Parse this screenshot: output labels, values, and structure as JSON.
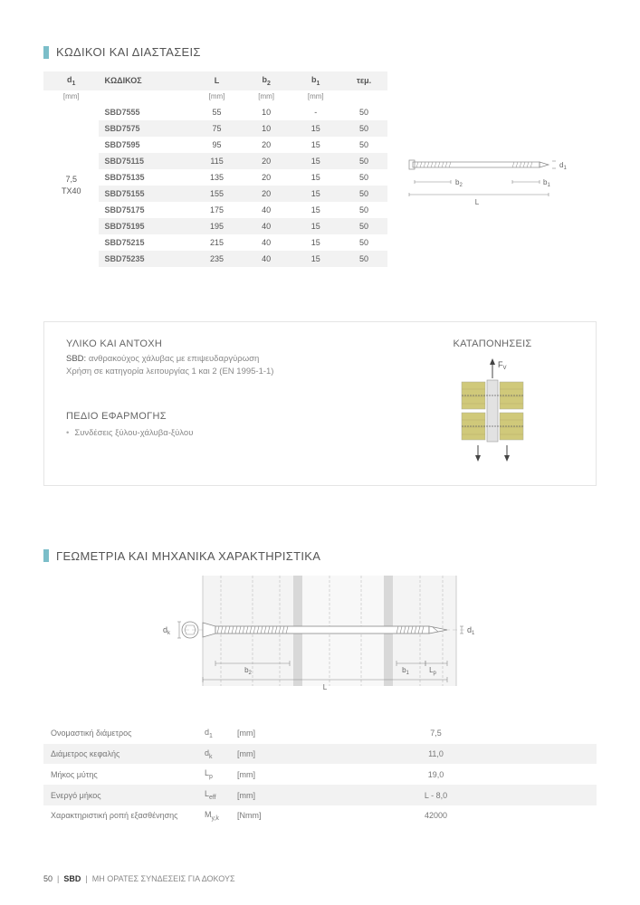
{
  "section1": {
    "title": "ΚΩΔΙΚΟΙ ΚΑΙ ΔΙΑΣΤΑΣΕΙΣ",
    "headers": {
      "d1": "d",
      "d1sub": "1",
      "code": "ΚΩΔΙΚΟΣ",
      "L": "L",
      "b2": "b",
      "b2sub": "2",
      "b1": "b",
      "b1sub": "1",
      "pcs": "τεμ."
    },
    "unit": "[mm]",
    "rowhead_line1": "7,5",
    "rowhead_line2": "TX40",
    "rows": [
      {
        "code": "SBD7555",
        "L": "55",
        "b2": "10",
        "b1": "-",
        "pcs": "50"
      },
      {
        "code": "SBD7575",
        "L": "75",
        "b2": "10",
        "b1": "15",
        "pcs": "50"
      },
      {
        "code": "SBD7595",
        "L": "95",
        "b2": "20",
        "b1": "15",
        "pcs": "50"
      },
      {
        "code": "SBD75115",
        "L": "115",
        "b2": "20",
        "b1": "15",
        "pcs": "50"
      },
      {
        "code": "SBD75135",
        "L": "135",
        "b2": "20",
        "b1": "15",
        "pcs": "50"
      },
      {
        "code": "SBD75155",
        "L": "155",
        "b2": "20",
        "b1": "15",
        "pcs": "50"
      },
      {
        "code": "SBD75175",
        "L": "175",
        "b2": "40",
        "b1": "15",
        "pcs": "50"
      },
      {
        "code": "SBD75195",
        "L": "195",
        "b2": "40",
        "b1": "15",
        "pcs": "50"
      },
      {
        "code": "SBD75215",
        "L": "215",
        "b2": "40",
        "b1": "15",
        "pcs": "50"
      },
      {
        "code": "SBD75235",
        "L": "235",
        "b2": "40",
        "b1": "15",
        "pcs": "50"
      }
    ]
  },
  "schematic_small": {
    "d1": "d",
    "d1sub": "1",
    "b2": "b",
    "b2sub": "2",
    "b1": "b",
    "b1sub": "1",
    "L": "L"
  },
  "material": {
    "title1": "ΥΛΙΚΟ ΚΑΙ ΑΝΤΟΧΗ",
    "sbd_label": "SBD:",
    "sbd_text": "ανθρακούχος χάλυβας με επιψευδαργύρωση",
    "use_text": "Χρήση σε κατηγορία λειτουργίας 1 και 2 (EN 1995-1-1)",
    "title2": "ΠΕΔΙΟ ΕΦΑΡΜΟΓΗΣ",
    "app1": "Συνδέσεις ξύλου-χάλυβα-ξύλου",
    "title_right": "ΚΑΤΑΠΟΝΗΣΕΙΣ",
    "fv": "F",
    "fvsub": "V"
  },
  "section3": {
    "title": "ΓΕΩΜΕΤΡΙΑ ΚΑΙ ΜΗΧΑΝΙΚΑ ΧΑΡΑΚΤΗΡΙΣΤΙΚΑ",
    "labels": {
      "dk": "d",
      "dksub": "k",
      "d1": "d",
      "d1sub": "1",
      "b2": "b",
      "b2sub": "2",
      "b1": "b",
      "b1sub": "1",
      "Lp": "L",
      "Lpsub": "p",
      "L": "L"
    },
    "props": [
      {
        "name": "Ονομαστική διάμετρος",
        "sym": "d",
        "sub": "1",
        "unit": "[mm]",
        "val": "7,5"
      },
      {
        "name": "Διάμετρος κεφαλής",
        "sym": "d",
        "sub": "k",
        "unit": "[mm]",
        "val": "11,0"
      },
      {
        "name": "Μήκος μύτης",
        "sym": "L",
        "sub": "p",
        "unit": "[mm]",
        "val": "19,0"
      },
      {
        "name": "Ενεργό μήκος",
        "sym": "L",
        "sub": "eff",
        "unit": "[mm]",
        "val": "L - 8,0"
      },
      {
        "name": "Χαρακτηριστική ροπή εξασθένησης",
        "sym": "M",
        "sub": "y,k",
        "unit": "[Nmm]",
        "val": "42000"
      }
    ]
  },
  "footer": {
    "page": "50",
    "sep": "|",
    "sbd": "SBD",
    "text": "ΜΗ ΟΡΑΤΕΣ ΣΥΝΔΕΣΕΙΣ  ΓΙΑ ΔΟΚΟΥΣ"
  },
  "colors": {
    "accent": "#7bbec9",
    "stripe": "#f2f2f2",
    "wood": "#d0c97a",
    "steel": "#bfbfbf"
  }
}
